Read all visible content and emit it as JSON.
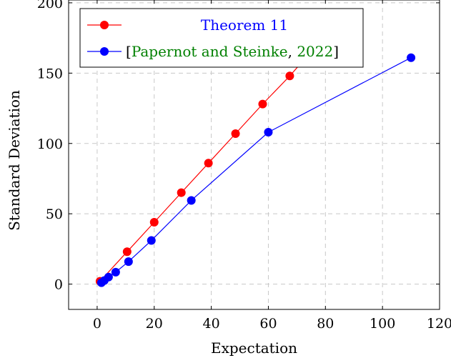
{
  "chart_data": {
    "type": "line",
    "xlabel": "Expectation",
    "ylabel": "Standard Deviation",
    "xlim": [
      -10,
      120
    ],
    "ylim": [
      -18,
      202
    ],
    "x_ticks": [
      "0",
      "20",
      "40",
      "60",
      "80",
      "100",
      "120"
    ],
    "y_ticks": [
      "0",
      "50",
      "100",
      "150",
      "200"
    ],
    "grid": true,
    "legend_position": "top-left",
    "series": [
      {
        "name": "Theorem 11",
        "color": "#ff0000",
        "legend_text_color": "#0000ff",
        "points": [
          [
            1,
            2
          ],
          [
            10.5,
            23
          ],
          [
            20,
            44
          ],
          [
            29.5,
            65
          ],
          [
            39,
            86
          ],
          [
            48.5,
            107
          ],
          [
            58,
            128
          ],
          [
            67.5,
            148
          ],
          [
            77,
            170
          ]
        ]
      },
      {
        "name_parts": [
          {
            "text": "[",
            "color": "#000000"
          },
          {
            "text": "Papernot and Steinke",
            "color": "#008000"
          },
          {
            "text": ", ",
            "color": "#000000"
          },
          {
            "text": "2022",
            "color": "#008000"
          },
          {
            "text": "]",
            "color": "#000000"
          }
        ],
        "color": "#0000ff",
        "points": [
          [
            1.5,
            1
          ],
          [
            2.5,
            2.5
          ],
          [
            4,
            5
          ],
          [
            6.5,
            8.5
          ],
          [
            11,
            16
          ],
          [
            19,
            31
          ],
          [
            33,
            59.5
          ],
          [
            60,
            108
          ],
          [
            110,
            161
          ]
        ]
      }
    ]
  }
}
